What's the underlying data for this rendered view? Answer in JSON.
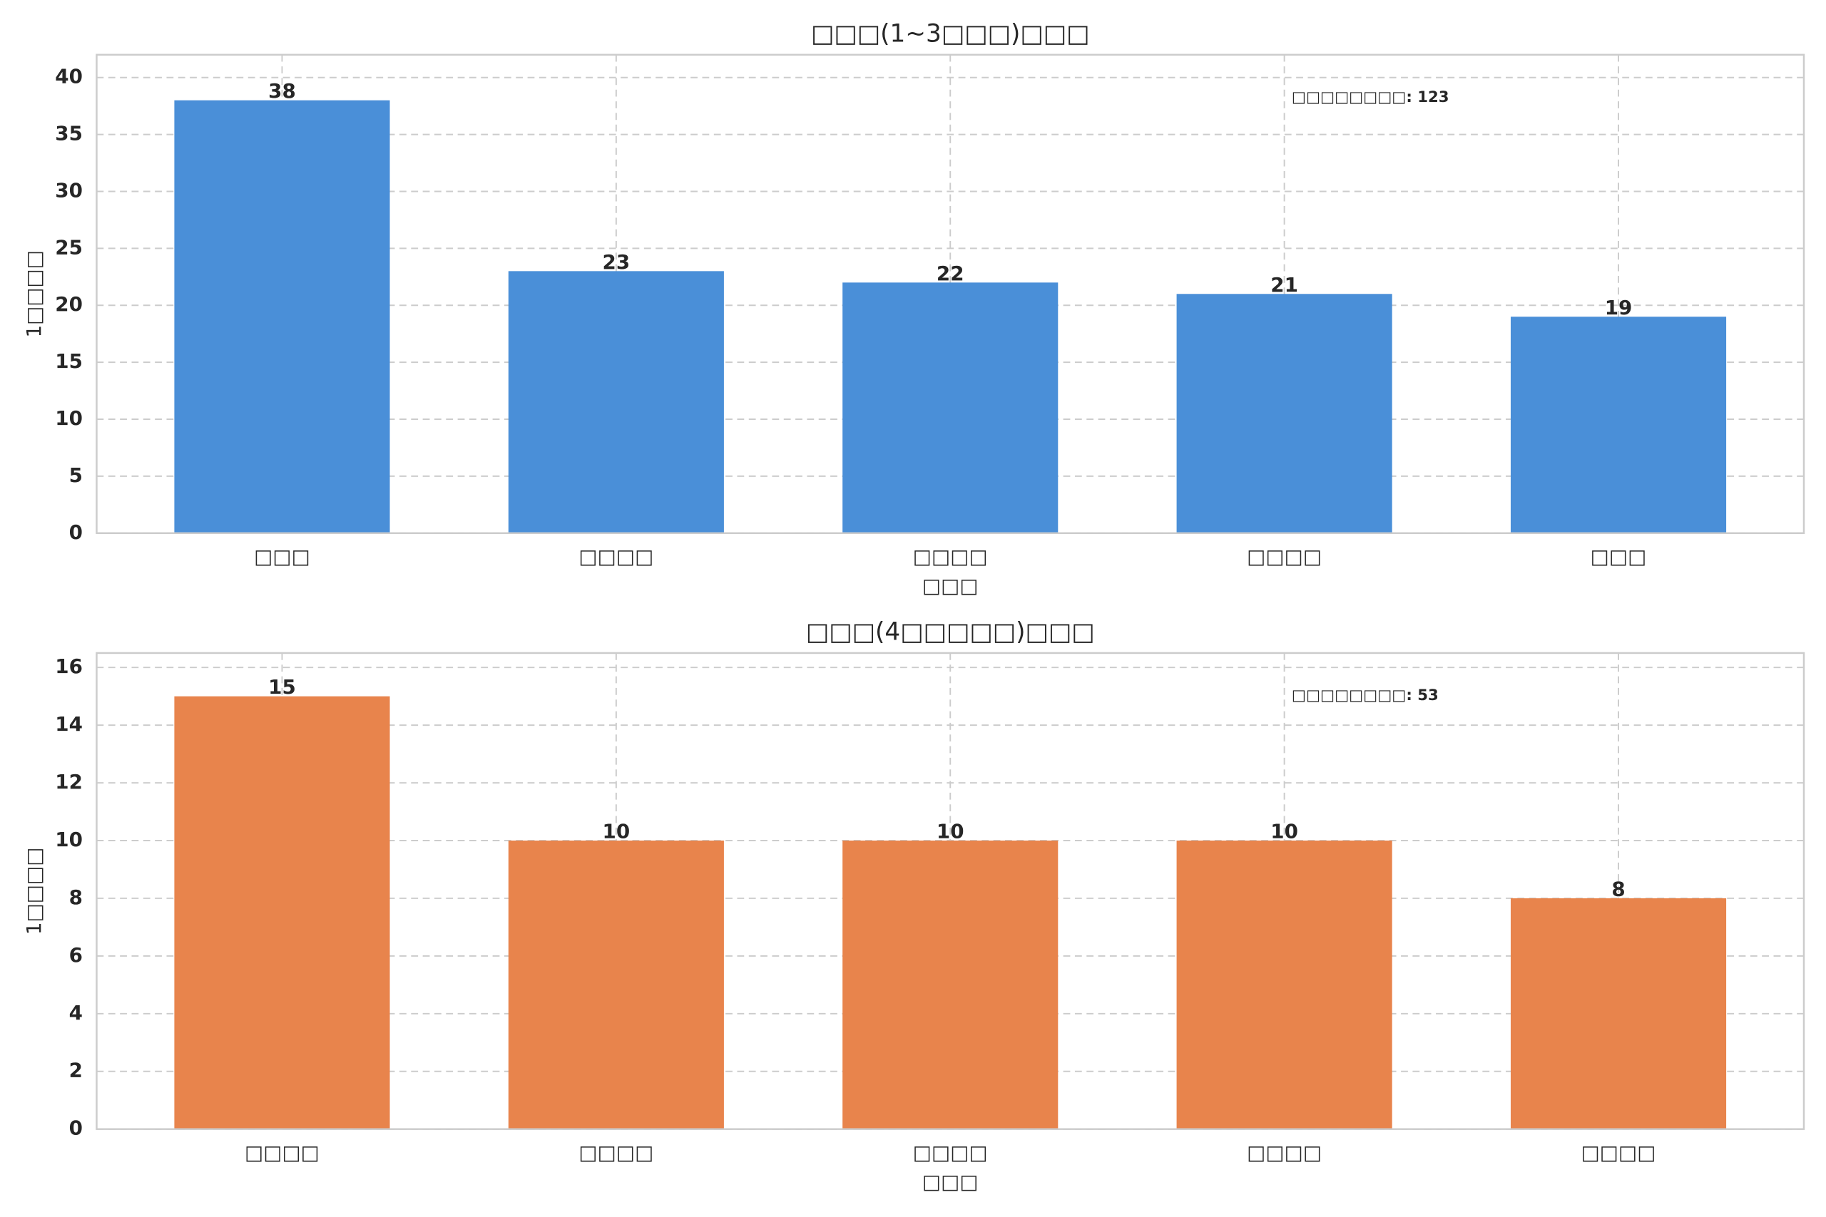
{
  "chart_data": [
    {
      "type": "bar",
      "title": "□□□(1~3□□□)□□□",
      "xlabel": "□□□",
      "ylabel": "1□□□□",
      "categories": [
        "□□□",
        "□□□□",
        "□□□□",
        "□□□□",
        "□□□"
      ],
      "values": [
        38,
        23,
        22,
        21,
        19
      ],
      "color": "#4a8fd8",
      "ylim": [
        0,
        42
      ],
      "yticks": [
        0,
        5,
        10,
        15,
        20,
        25,
        30,
        35,
        40
      ],
      "grid": true,
      "annotation": "□□□□□□□□: 123"
    },
    {
      "type": "bar",
      "title": "□□□(4□□□□□)□□□",
      "xlabel": "□□□",
      "ylabel": "1□□□□",
      "categories": [
        "□□□□",
        "□□□□",
        "□□□□",
        "□□□□",
        "□□□□"
      ],
      "values": [
        15,
        10,
        10,
        10,
        8
      ],
      "color": "#e8844c",
      "ylim": [
        0,
        16.5
      ],
      "yticks": [
        0,
        2,
        4,
        6,
        8,
        10,
        12,
        14,
        16
      ],
      "grid": true,
      "annotation": "□□□□□□□□: 53"
    }
  ]
}
